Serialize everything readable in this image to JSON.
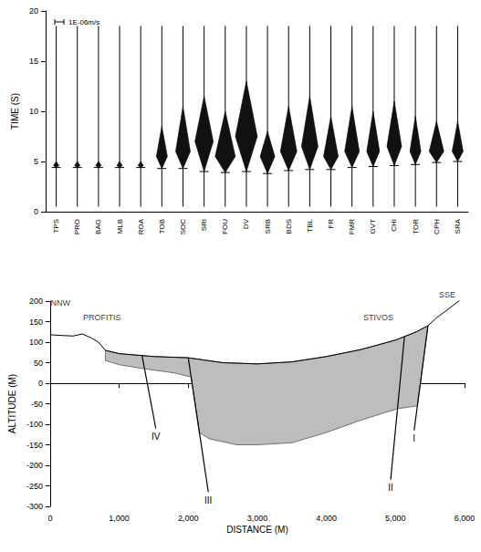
{
  "chart_data": [
    {
      "type": "seismogram",
      "ylabel": "TIME (S)",
      "ylim": [
        0,
        20
      ],
      "yticks": [
        0,
        5,
        10,
        15,
        20
      ],
      "scale_bar": {
        "value": 1,
        "label": "1E-06m/s"
      },
      "categories": [
        "TPS",
        "PRO",
        "BAG",
        "MLB",
        "ROA",
        "TOB",
        "SOC",
        "SRI",
        "FOU",
        "DV",
        "SRB",
        "BDS",
        "TBL",
        "FR",
        "FMR",
        "GVT",
        "CHI",
        "TOR",
        "CPH",
        "SRA"
      ],
      "trace_start": [
        0.5,
        0.5,
        0.5,
        0.5,
        0.5,
        0.5,
        0.5,
        0.5,
        0.5,
        0.5,
        0.5,
        0.5,
        0.5,
        0.5,
        0.5,
        0.5,
        0.5,
        0.5,
        0.5,
        0.5
      ],
      "trace_end": [
        18.5,
        18.5,
        18.5,
        18.5,
        18.5,
        18.5,
        18.5,
        18.5,
        18.5,
        18.5,
        18.5,
        18.5,
        18.5,
        18.5,
        18.5,
        18.5,
        18.5,
        18.5,
        18.5,
        18.5
      ],
      "onset": [
        4.4,
        4.4,
        4.4,
        4.4,
        4.4,
        4.3,
        4.3,
        4.0,
        3.9,
        4.0,
        3.8,
        4.1,
        4.2,
        4.2,
        4.4,
        4.5,
        4.6,
        4.7,
        4.9,
        5.0
      ],
      "peak": [
        4.6,
        4.6,
        4.6,
        4.6,
        4.6,
        5.5,
        6.0,
        7.0,
        5.5,
        7.5,
        5.5,
        6.0,
        6.5,
        5.5,
        6.0,
        6.0,
        6.5,
        6.0,
        6.0,
        6.0
      ],
      "coda_end": [
        5.0,
        5.0,
        5.0,
        5.0,
        5.0,
        8.5,
        10.5,
        11.5,
        10.0,
        13.0,
        8.0,
        10.5,
        11.5,
        9.5,
        10.5,
        10.0,
        11.0,
        9.5,
        9.0,
        9.0
      ],
      "amplitude": [
        0.3,
        0.3,
        0.3,
        0.3,
        0.3,
        0.6,
        0.8,
        1.0,
        1.1,
        1.2,
        0.8,
        0.9,
        0.9,
        0.8,
        0.8,
        0.7,
        0.8,
        0.6,
        0.8,
        0.6
      ]
    },
    {
      "type": "section",
      "xlabel": "DISTANCE (M)",
      "ylabel": "ALTITUDE (M)",
      "xlim": [
        0,
        6000
      ],
      "xticks": [
        0,
        1000,
        2000,
        3000,
        4000,
        5000,
        6000
      ],
      "ylim": [
        -300,
        200
      ],
      "yticks": [
        -300,
        -250,
        -200,
        -150,
        -100,
        -50,
        0,
        50,
        100,
        150,
        200
      ],
      "ground": {
        "x": [
          0,
          200,
          333,
          467,
          600,
          700,
          800,
          1000,
          1500,
          2000,
          2500,
          3000,
          3500,
          4000,
          4500,
          5000,
          5300,
          5470,
          5600,
          5800,
          5950
        ],
        "y": [
          118,
          116,
          115,
          120,
          110,
          100,
          80,
          72,
          65,
          62,
          50,
          47,
          52,
          65,
          82,
          105,
          125,
          140,
          160,
          185,
          205
        ]
      },
      "basin": {
        "top": {
          "x": [
            800,
            1000,
            1500,
            2000,
            2500,
            3000,
            3500,
            4000,
            4500,
            5000,
            5300,
            5470
          ],
          "y": [
            80,
            72,
            65,
            62,
            50,
            47,
            52,
            65,
            82,
            105,
            125,
            140
          ]
        },
        "base": {
          "x": [
            800,
            1000,
            1367,
            1800,
            2040,
            2160,
            2300,
            2700,
            3000,
            3500,
            4000,
            4500,
            5030,
            5200,
            5317,
            5470
          ],
          "y": [
            55,
            45,
            35,
            25,
            15,
            -120,
            -135,
            -150,
            -150,
            -145,
            -120,
            -90,
            -62,
            -58,
            -55,
            140
          ]
        }
      },
      "faults": [
        {
          "label": "I",
          "x": [
            5470,
            5270
          ],
          "y": [
            140,
            -115
          ]
        },
        {
          "label": "II",
          "x": [
            5130,
            4930
          ],
          "y": [
            114,
            -235
          ]
        },
        {
          "label": "III",
          "x": [
            2000,
            2290
          ],
          "y": [
            62,
            -265
          ]
        },
        {
          "label": "IV",
          "x": [
            1330,
            1530
          ],
          "y": [
            68,
            -110
          ]
        }
      ],
      "annotations": [
        {
          "text": "NNW",
          "x": 150,
          "y": 195
        },
        {
          "text": "SSE",
          "x": 5750,
          "y": 215
        },
        {
          "text": "PROFITIS",
          "x": 750,
          "y": 160
        },
        {
          "text": "STIVOS",
          "x": 4750,
          "y": 160
        }
      ]
    }
  ]
}
